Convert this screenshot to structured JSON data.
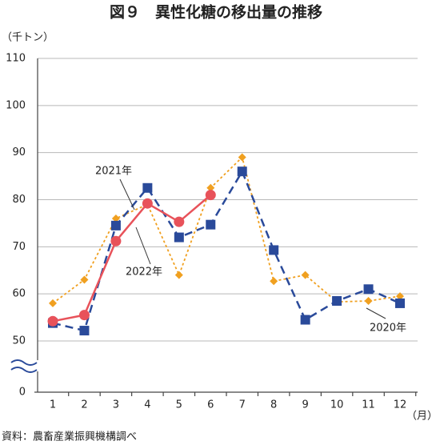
{
  "chart_data": {
    "type": "line",
    "title": "図９　異性化糖の移出量の推移",
    "y_label": "（千トン）",
    "x_label": "（月）",
    "source": "資料：農畜産業振興機構調べ",
    "categories": [
      "1",
      "2",
      "3",
      "4",
      "5",
      "6",
      "7",
      "8",
      "9",
      "10",
      "11",
      "12"
    ],
    "ylim": [
      0,
      110
    ],
    "ybreak": [
      0,
      50
    ],
    "yticks": [
      0,
      50,
      60,
      70,
      80,
      90,
      100,
      110
    ],
    "grid": true,
    "series": [
      {
        "name": "2020年",
        "color": "#f0a020",
        "marker": "diamond",
        "dash": "dotted",
        "values": [
          58,
          63,
          76,
          79,
          64,
          82.5,
          89,
          62.7,
          64,
          58.3,
          58.5,
          59.5
        ]
      },
      {
        "name": "2021年",
        "color": "#2a4a9a",
        "marker": "square",
        "dash": "dashed",
        "values": [
          53.8,
          52.2,
          74.5,
          82.5,
          72,
          74.7,
          86,
          69.3,
          54.5,
          58.5,
          61,
          58
        ]
      },
      {
        "name": "2022年",
        "color": "#e8525a",
        "marker": "circle",
        "dash": "solid",
        "values": [
          54.2,
          55.5,
          71.2,
          79.2,
          75.3,
          81,
          null,
          null,
          null,
          null,
          null,
          null
        ]
      }
    ]
  }
}
